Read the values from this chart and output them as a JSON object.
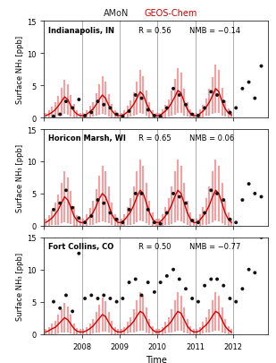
{
  "title_amon": "AMoN",
  "title_geos": "GEOS-Chem",
  "title_color_amon": "#222222",
  "title_color_geos": "#cc0000",
  "xlabel": "Time",
  "ylabel": "Surface NH₃ [ppb]",
  "ylim": [
    0,
    15
  ],
  "yticks": [
    0,
    5,
    10,
    15
  ],
  "panels": [
    {
      "site": "Indianapolis, IN",
      "R": "R = 0.56",
      "NMB": "NMB = −0.14",
      "geos_mean": [
        0.3,
        0.5,
        0.8,
        1.2,
        1.8,
        2.5,
        3.2,
        2.8,
        1.8,
        1.0,
        0.5,
        0.3,
        0.3,
        0.5,
        0.9,
        1.3,
        2.0,
        2.8,
        3.5,
        3.0,
        1.9,
        1.1,
        0.5,
        0.3,
        0.3,
        0.5,
        0.9,
        1.4,
        2.1,
        3.0,
        4.0,
        3.5,
        2.2,
        1.2,
        0.5,
        0.3,
        0.3,
        0.6,
        1.0,
        1.5,
        2.3,
        3.2,
        4.2,
        3.8,
        2.4,
        1.3,
        0.6,
        0.3,
        0.3,
        0.6,
        1.0,
        1.6,
        2.4,
        3.4,
        4.5,
        4.0,
        2.5,
        1.4,
        0.7,
        0.4
      ],
      "geos_std": [
        0.3,
        0.5,
        0.7,
        1.0,
        1.4,
        2.0,
        2.5,
        2.2,
        1.5,
        0.9,
        0.5,
        0.3,
        0.3,
        0.5,
        0.8,
        1.0,
        1.6,
        2.2,
        2.8,
        2.4,
        1.6,
        0.9,
        0.5,
        0.3,
        0.3,
        0.5,
        0.8,
        1.1,
        1.7,
        2.4,
        3.2,
        2.8,
        1.8,
        1.0,
        0.5,
        0.3,
        0.3,
        0.5,
        0.8,
        1.2,
        1.8,
        2.6,
        3.4,
        3.0,
        1.9,
        1.0,
        0.5,
        0.3,
        0.3,
        0.5,
        0.8,
        1.2,
        1.9,
        2.7,
        3.6,
        3.2,
        2.0,
        1.1,
        0.6,
        0.3
      ],
      "obs_x": [
        2007.25,
        2007.42,
        2007.58,
        2007.75,
        2007.92,
        2008.08,
        2008.25,
        2008.42,
        2008.58,
        2008.75,
        2008.92,
        2009.08,
        2009.25,
        2009.42,
        2009.58,
        2009.75,
        2009.92,
        2010.08,
        2010.25,
        2010.42,
        2010.58,
        2010.75,
        2010.92,
        2011.08,
        2011.25,
        2011.42,
        2011.58,
        2011.75,
        2011.92,
        2012.08,
        2012.25,
        2012.42,
        2012.58,
        2012.75
      ],
      "obs_y": [
        0.2,
        0.5,
        2.5,
        1.5,
        2.8,
        0.3,
        0.8,
        2.5,
        2.0,
        1.5,
        0.5,
        0.2,
        1.0,
        3.5,
        3.0,
        1.2,
        0.3,
        0.2,
        1.5,
        4.5,
        3.5,
        2.0,
        0.5,
        0.3,
        1.5,
        4.0,
        3.5,
        2.5,
        0.8,
        1.5,
        4.5,
        5.5,
        3.0,
        8.0
      ]
    },
    {
      "site": "Horicon Marsh, WI",
      "R": "R = 0.65",
      "NMB": "NMB = 0.06",
      "geos_mean": [
        0.5,
        0.8,
        1.2,
        1.8,
        2.5,
        3.5,
        4.5,
        4.0,
        2.8,
        1.5,
        0.8,
        0.5,
        0.5,
        0.9,
        1.4,
        2.0,
        3.0,
        4.2,
        5.0,
        4.5,
        3.2,
        1.8,
        0.9,
        0.5,
        0.5,
        0.9,
        1.5,
        2.2,
        3.2,
        4.5,
        5.5,
        5.0,
        3.5,
        2.0,
        1.0,
        0.5,
        0.5,
        0.9,
        1.5,
        2.2,
        3.2,
        4.5,
        5.5,
        5.0,
        3.5,
        2.0,
        1.0,
        0.5,
        0.5,
        0.9,
        1.5,
        2.2,
        3.2,
        4.5,
        5.5,
        5.0,
        3.5,
        2.0,
        1.0,
        0.5
      ],
      "geos_std": [
        0.4,
        0.7,
        1.0,
        1.6,
        2.2,
        3.0,
        3.8,
        3.4,
        2.4,
        1.4,
        0.7,
        0.4,
        0.4,
        0.8,
        1.2,
        1.8,
        2.5,
        3.5,
        4.2,
        3.8,
        2.7,
        1.6,
        0.8,
        0.4,
        0.4,
        0.8,
        1.3,
        1.9,
        2.8,
        3.8,
        4.6,
        4.2,
        3.0,
        1.7,
        0.9,
        0.4,
        0.4,
        0.8,
        1.3,
        1.9,
        2.8,
        3.8,
        4.6,
        4.2,
        3.0,
        1.7,
        0.9,
        0.4,
        0.4,
        0.8,
        1.3,
        1.9,
        2.8,
        3.8,
        4.6,
        4.2,
        3.0,
        1.7,
        0.9,
        0.4
      ],
      "obs_x": [
        2007.25,
        2007.42,
        2007.58,
        2007.75,
        2007.92,
        2008.08,
        2008.25,
        2008.42,
        2008.58,
        2008.75,
        2008.92,
        2009.08,
        2009.25,
        2009.42,
        2009.58,
        2009.75,
        2009.92,
        2010.08,
        2010.25,
        2010.42,
        2010.58,
        2010.75,
        2010.92,
        2011.08,
        2011.25,
        2011.42,
        2011.58,
        2011.75,
        2011.92,
        2012.08,
        2012.25,
        2012.42,
        2012.58,
        2012.75
      ],
      "obs_y": [
        2.5,
        3.5,
        5.5,
        2.8,
        1.2,
        0.5,
        1.5,
        4.0,
        3.5,
        2.0,
        1.0,
        0.5,
        2.5,
        5.0,
        5.0,
        2.5,
        0.5,
        0.3,
        2.0,
        5.0,
        4.5,
        3.5,
        0.8,
        0.5,
        2.0,
        5.5,
        5.0,
        4.0,
        1.0,
        0.5,
        4.0,
        6.5,
        5.0,
        4.5
      ]
    },
    {
      "site": "Fort Collins, CO",
      "R": "R = 0.50",
      "NMB": "NMB = −0.77",
      "geos_mean": [
        0.3,
        0.5,
        0.8,
        1.0,
        1.5,
        2.0,
        2.5,
        2.2,
        1.5,
        0.8,
        0.4,
        0.3,
        0.3,
        0.5,
        0.8,
        1.2,
        1.8,
        2.4,
        3.0,
        2.7,
        1.8,
        1.0,
        0.5,
        0.3,
        0.3,
        0.5,
        1.0,
        1.4,
        2.0,
        2.8,
        3.5,
        3.2,
        2.2,
        1.2,
        0.6,
        0.3,
        0.3,
        0.5,
        1.0,
        1.4,
        2.0,
        2.8,
        3.5,
        3.2,
        2.2,
        1.2,
        0.6,
        0.3,
        0.3,
        0.5,
        1.0,
        1.4,
        2.0,
        2.8,
        3.5,
        3.2,
        2.2,
        1.2,
        0.6,
        0.3
      ],
      "geos_std": [
        0.3,
        0.4,
        0.7,
        0.9,
        1.3,
        1.7,
        2.1,
        1.9,
        1.3,
        0.7,
        0.4,
        0.3,
        0.3,
        0.4,
        0.7,
        1.0,
        1.5,
        2.0,
        2.5,
        2.2,
        1.5,
        0.9,
        0.4,
        0.3,
        0.3,
        0.4,
        0.8,
        1.1,
        1.7,
        2.3,
        2.9,
        2.6,
        1.8,
        1.0,
        0.5,
        0.3,
        0.3,
        0.4,
        0.8,
        1.1,
        1.7,
        2.3,
        2.9,
        2.6,
        1.8,
        1.0,
        0.5,
        0.3,
        0.3,
        0.4,
        0.8,
        1.1,
        1.7,
        2.3,
        2.9,
        2.6,
        1.8,
        1.0,
        0.5,
        0.3
      ],
      "obs_x": [
        2007.25,
        2007.42,
        2007.58,
        2007.75,
        2007.92,
        2008.08,
        2008.25,
        2008.42,
        2008.58,
        2008.75,
        2008.92,
        2009.08,
        2009.25,
        2009.42,
        2009.58,
        2009.75,
        2009.92,
        2010.08,
        2010.25,
        2010.42,
        2010.58,
        2010.75,
        2010.92,
        2011.08,
        2011.25,
        2011.42,
        2011.58,
        2011.75,
        2011.92,
        2012.08,
        2012.25,
        2012.42,
        2012.58,
        2012.75
      ],
      "obs_y": [
        5.0,
        4.0,
        6.0,
        3.5,
        12.5,
        5.5,
        6.0,
        5.5,
        6.0,
        5.5,
        5.0,
        5.5,
        8.0,
        8.5,
        6.0,
        8.0,
        6.5,
        8.0,
        9.0,
        10.0,
        8.5,
        7.0,
        5.5,
        5.0,
        7.5,
        8.5,
        8.5,
        7.5,
        5.5,
        5.0,
        7.0,
        10.0,
        9.5,
        15.0
      ]
    }
  ],
  "year_lines": [
    2008,
    2009,
    2010,
    2011,
    2012
  ],
  "xtick_years": [
    2008,
    2009,
    2010,
    2011,
    2012
  ],
  "xlim": [
    2007.0,
    2012.92
  ],
  "red_color": "#cc0000",
  "red_fill_color": "#f5a0a0",
  "obs_color": "#111111",
  "line_color_vgrid": "#888888"
}
